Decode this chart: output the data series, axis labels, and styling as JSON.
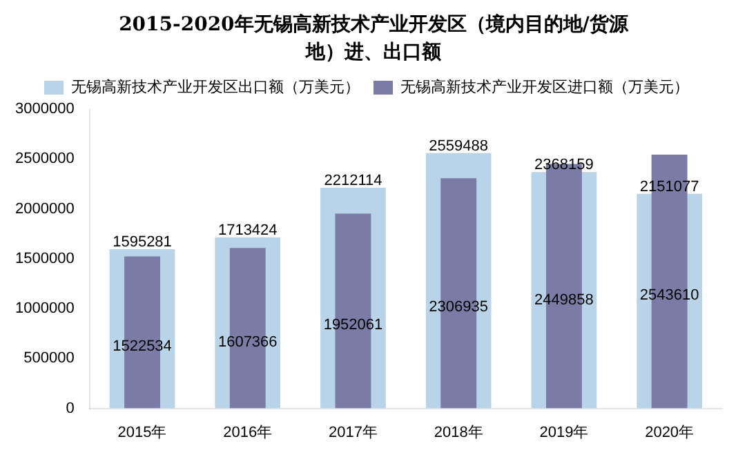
{
  "chart_data": {
    "type": "bar",
    "title": "2015-2020年无锡高新技术产业开发区（境内目的地/货源地）进、出口额",
    "categories": [
      "2015年",
      "2016年",
      "2017年",
      "2018年",
      "2019年",
      "2020年"
    ],
    "series": [
      {
        "name": "无锡高新技术产业开发区出口额（万美元）",
        "color": "#b9d4e8",
        "values": [
          1595281,
          1713424,
          2212114,
          2559488,
          2368159,
          2151077
        ]
      },
      {
        "name": "无锡高新技术产业开发区进口额（万美元）",
        "color": "#7a7ca6",
        "values": [
          1522534,
          1607366,
          1952061,
          2306935,
          2449858,
          2543610
        ]
      }
    ],
    "ylim": [
      0,
      3000000
    ],
    "yticks": [
      0,
      500000,
      1000000,
      1500000,
      2000000,
      2500000,
      3000000
    ],
    "grid": false,
    "legend": "top",
    "data_labels": true
  }
}
